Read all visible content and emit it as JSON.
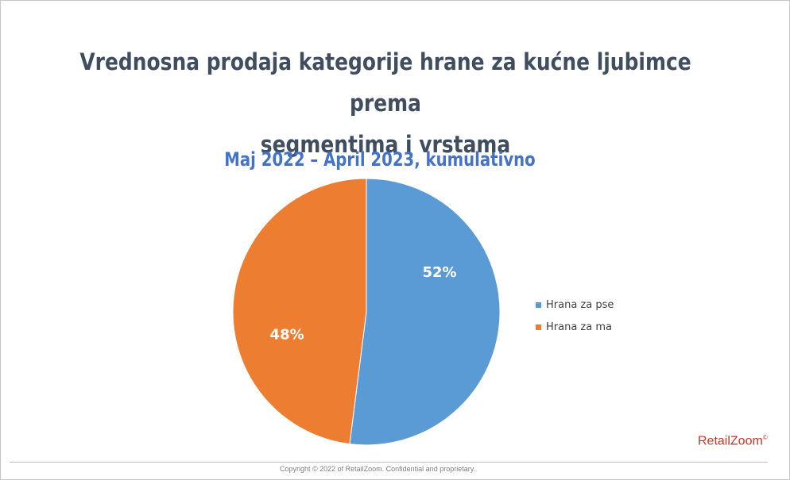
{
  "chart_data": {
    "type": "pie",
    "title_line1": "Vrednosna prodaja kategorije hrane za kućne ljubimce prema",
    "title_line2": "segmentima i vrstama",
    "subtitle": "Maj 2022 – April 2023, kumulativno",
    "categories": [
      "Hrana za pse",
      "Hrana za ma"
    ],
    "values": [
      52,
      48
    ],
    "data_labels": [
      "52%",
      "48%"
    ],
    "colors": [
      "#5b9bd5",
      "#ed7d31"
    ],
    "legend_position": "right"
  },
  "brand": {
    "part1": "Retail",
    "part2": "Zoom",
    "mark": "©"
  },
  "footer": {
    "copyright": "Copyright © 2022 of RetailZoom. Confidential and proprietary."
  }
}
